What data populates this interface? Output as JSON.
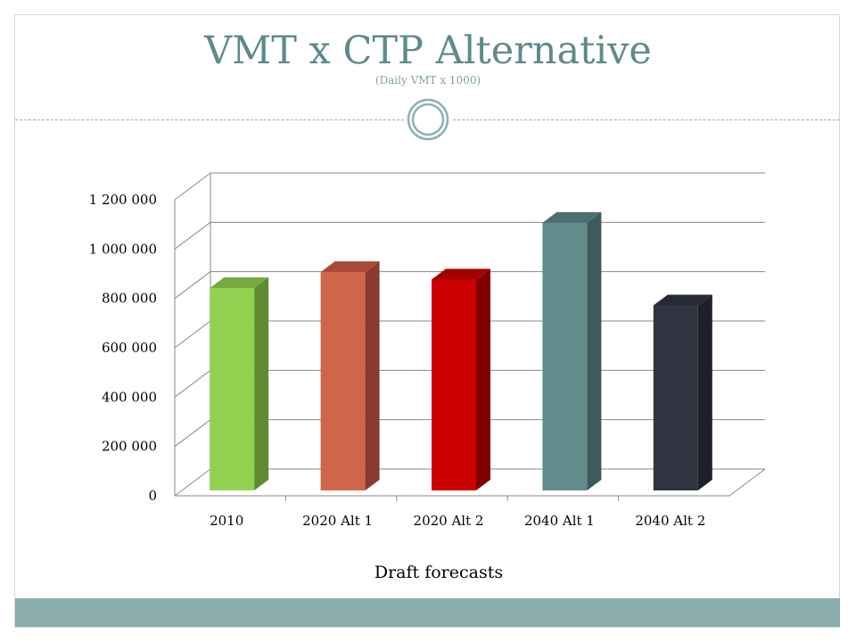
{
  "slide": {
    "title": "VMT x CTP Alternative",
    "subtitle": "(Daily VMT x 1000)"
  },
  "colors": {
    "title": "#5e8a8a",
    "footer": "#8aacac"
  },
  "chart_data": {
    "type": "bar",
    "style": "3d-columns",
    "xlabel": "Draft forecasts",
    "ylabel": "",
    "ylim": [
      0,
      1200000
    ],
    "yticks": [
      {
        "value": 0,
        "label": "0"
      },
      {
        "value": 200000,
        "label": "200 000"
      },
      {
        "value": 400000,
        "label": "400 000"
      },
      {
        "value": 600000,
        "label": "600 000"
      },
      {
        "value": 800000,
        "label": "800 000"
      },
      {
        "value": 1000000,
        "label": "1 000 000"
      },
      {
        "value": 1200000,
        "label": "1 200 000"
      }
    ],
    "grid": true,
    "legend": "none",
    "categories": [
      "2010",
      "2020 Alt 1",
      "2020 Alt 2",
      "2040 Alt 1",
      "2040 Alt 2"
    ],
    "values": [
      820000,
      885000,
      855000,
      1085000,
      750000
    ],
    "bar_colors": [
      {
        "front": "#92d050",
        "side": "#5f8a32",
        "top": "#76a940"
      },
      {
        "front": "#d0654a",
        "side": "#8a3b2f",
        "top": "#a84a37"
      },
      {
        "front": "#cc0000",
        "side": "#800000",
        "top": "#a50000"
      },
      {
        "front": "#638b8b",
        "side": "#3e5a5a",
        "top": "#4d6f6f"
      },
      {
        "front": "#303440",
        "side": "#1d2028",
        "top": "#262a33"
      }
    ]
  }
}
